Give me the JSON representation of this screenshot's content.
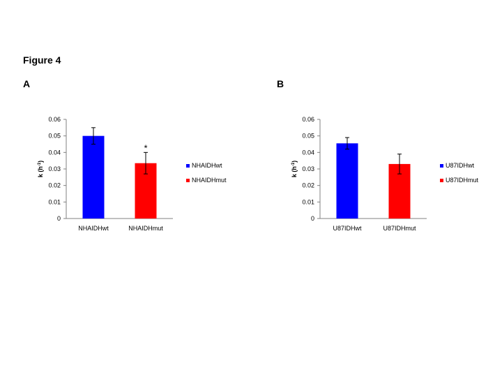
{
  "figure_title": "Figure 4",
  "panels": [
    {
      "letter": "A"
    },
    {
      "letter": "B"
    }
  ],
  "chart_data": [
    {
      "type": "bar",
      "panel": "A",
      "categories": [
        "NHAIDHwt",
        "NHAIDHmut"
      ],
      "values": [
        0.05,
        0.0335
      ],
      "errors": [
        0.005,
        0.0065
      ],
      "colors": [
        "#0000FF",
        "#FF0000"
      ],
      "ylabel_main": "k (h",
      "ylabel_sup": "-1",
      "ylabel_close": ")",
      "ylim": [
        0,
        0.06
      ],
      "yticks": [
        "0",
        "0.01",
        "0.02",
        "0.03",
        "0.04",
        "0.05",
        "0.06"
      ],
      "annotations": [
        "",
        "*"
      ],
      "legend": [
        "NHAIDHwt",
        "NHAIDHmut"
      ]
    },
    {
      "type": "bar",
      "panel": "B",
      "categories": [
        "U87IDHwt",
        "U87IDHmut"
      ],
      "values": [
        0.0455,
        0.033
      ],
      "errors": [
        0.0035,
        0.006
      ],
      "colors": [
        "#0000FF",
        "#FF0000"
      ],
      "ylabel_main": "k (h",
      "ylabel_sup": "-1",
      "ylabel_close": ")",
      "ylim": [
        0,
        0.06
      ],
      "yticks": [
        "0",
        "0.01",
        "0.02",
        "0.03",
        "0.04",
        "0.05",
        "0.06"
      ],
      "annotations": [
        "",
        ""
      ],
      "legend": [
        "U87IDHwt",
        "U87IDHmut"
      ]
    }
  ]
}
